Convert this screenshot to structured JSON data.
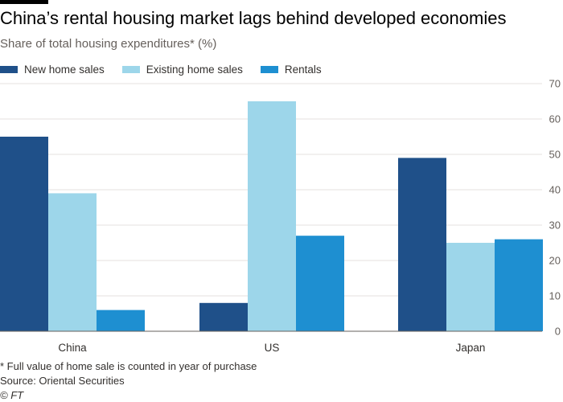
{
  "header": {
    "title": "China’s rental housing market lags behind developed economies",
    "subtitle": "Share of total housing expenditures* (%)"
  },
  "footer": {
    "footnote": "* Full value of home sale is counted in year of purchase",
    "source": "Source: Oriental Securities",
    "copyright": "© FT"
  },
  "colors": {
    "new_home_sales": "#1f5089",
    "existing_home_sales": "#9dd6ea",
    "rentals": "#1e8fd1",
    "grid": "#e6e2df",
    "baseline": "#66605c"
  },
  "chart_data": {
    "type": "bar",
    "title": "China’s rental housing market lags behind developed economies",
    "subtitle": "Share of total housing expenditures* (%)",
    "categories": [
      "China",
      "US",
      "Japan"
    ],
    "series": [
      {
        "name": "New home sales",
        "values": [
          55,
          8,
          49
        ]
      },
      {
        "name": "Existing home sales",
        "values": [
          39,
          65,
          25
        ]
      },
      {
        "name": "Rentals",
        "values": [
          6,
          27,
          26
        ]
      }
    ],
    "ylim": [
      0,
      70
    ],
    "yticks": [
      0,
      10,
      20,
      30,
      40,
      50,
      60,
      70
    ],
    "y_axis_side": "right",
    "grid": true,
    "legend_position": "top-left"
  }
}
